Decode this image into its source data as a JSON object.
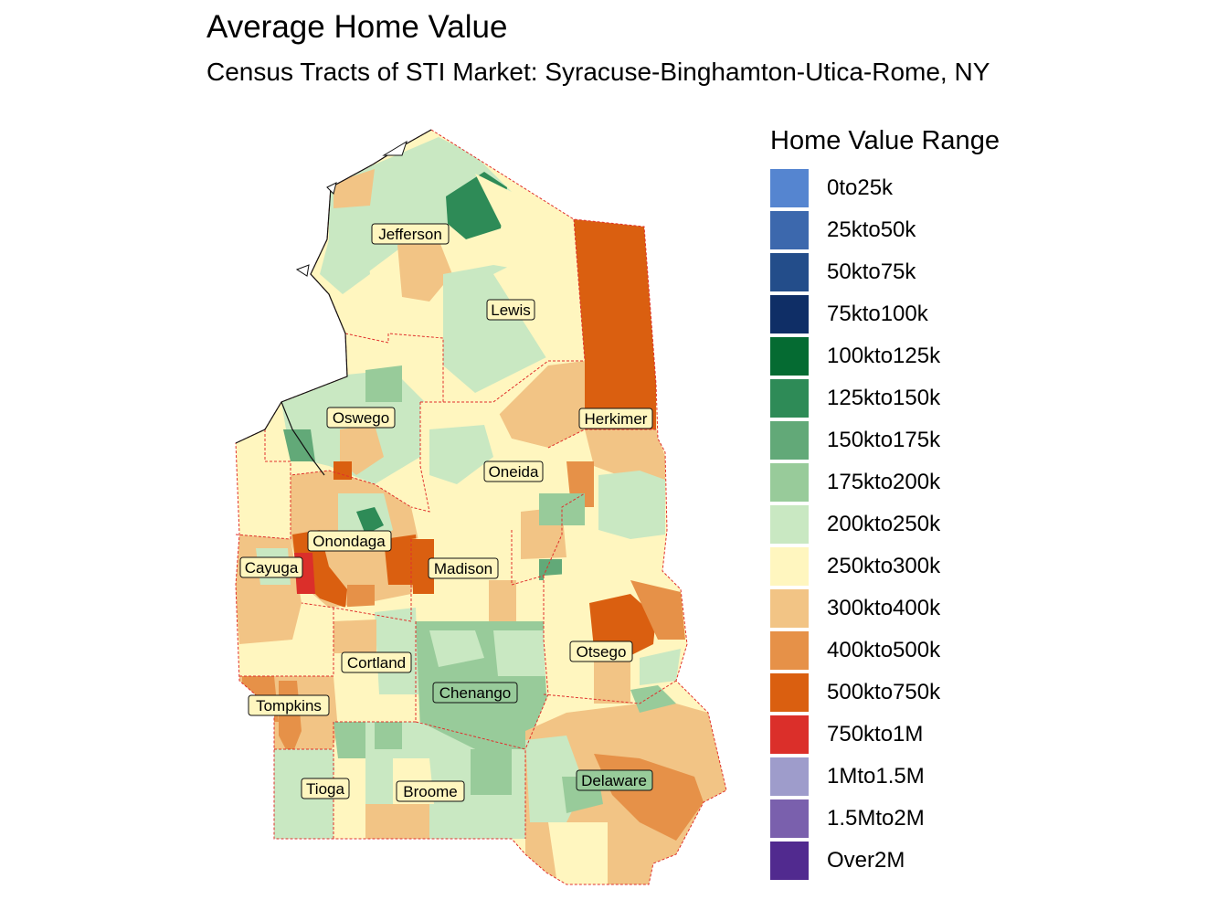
{
  "title": "Average Home Value",
  "subtitle": "Census Tracts of STI Market: Syracuse-Binghamton-Utica-Rome, NY",
  "legend": {
    "title": "Home Value Range",
    "items": [
      {
        "label": "0to25k",
        "color": "#5585d0"
      },
      {
        "label": "25kto50k",
        "color": "#3c68ad"
      },
      {
        "label": "50kto75k",
        "color": "#234d8a"
      },
      {
        "label": "75kto100k",
        "color": "#0f2e66"
      },
      {
        "label": "100kto125k",
        "color": "#056b32"
      },
      {
        "label": "125kto150k",
        "color": "#2e8b57"
      },
      {
        "label": "150kto175k",
        "color": "#62a978"
      },
      {
        "label": "175kto200k",
        "color": "#98cb9a"
      },
      {
        "label": "200kto250k",
        "color": "#c9e8c2"
      },
      {
        "label": "250kto300k",
        "color": "#fff6bf"
      },
      {
        "label": "300kto400k",
        "color": "#f2c485"
      },
      {
        "label": "400kto500k",
        "color": "#e69148"
      },
      {
        "label": "500kto750k",
        "color": "#da5f10"
      },
      {
        "label": "750kto1M",
        "color": "#db2f2a"
      },
      {
        "label": "1Mto1.5M",
        "color": "#9e9ccb"
      },
      {
        "label": "1.5Mto2M",
        "color": "#7a60ad"
      },
      {
        "label": "Over2M",
        "color": "#512a8f"
      }
    ]
  },
  "counties": [
    {
      "name": "Jefferson",
      "value_range": "200kto250k"
    },
    {
      "name": "Lewis",
      "value_range": "250kto300k"
    },
    {
      "name": "Oswego",
      "value_range": "200kto250k"
    },
    {
      "name": "Herkimer",
      "value_range": "500kto750k"
    },
    {
      "name": "Oneida",
      "value_range": "250kto300k"
    },
    {
      "name": "Onondaga",
      "value_range": "300kto400k"
    },
    {
      "name": "Cayuga",
      "value_range": "300kto400k"
    },
    {
      "name": "Madison",
      "value_range": "250kto300k"
    },
    {
      "name": "Cortland",
      "value_range": "250kto300k"
    },
    {
      "name": "Otsego",
      "value_range": "250kto300k"
    },
    {
      "name": "Chenango",
      "value_range": "175kto200k"
    },
    {
      "name": "Tompkins",
      "value_range": "400kto500k"
    },
    {
      "name": "Tioga",
      "value_range": "200kto250k"
    },
    {
      "name": "Broome",
      "value_range": "200kto250k"
    },
    {
      "name": "Delaware",
      "value_range": "300kto400k"
    }
  ]
}
